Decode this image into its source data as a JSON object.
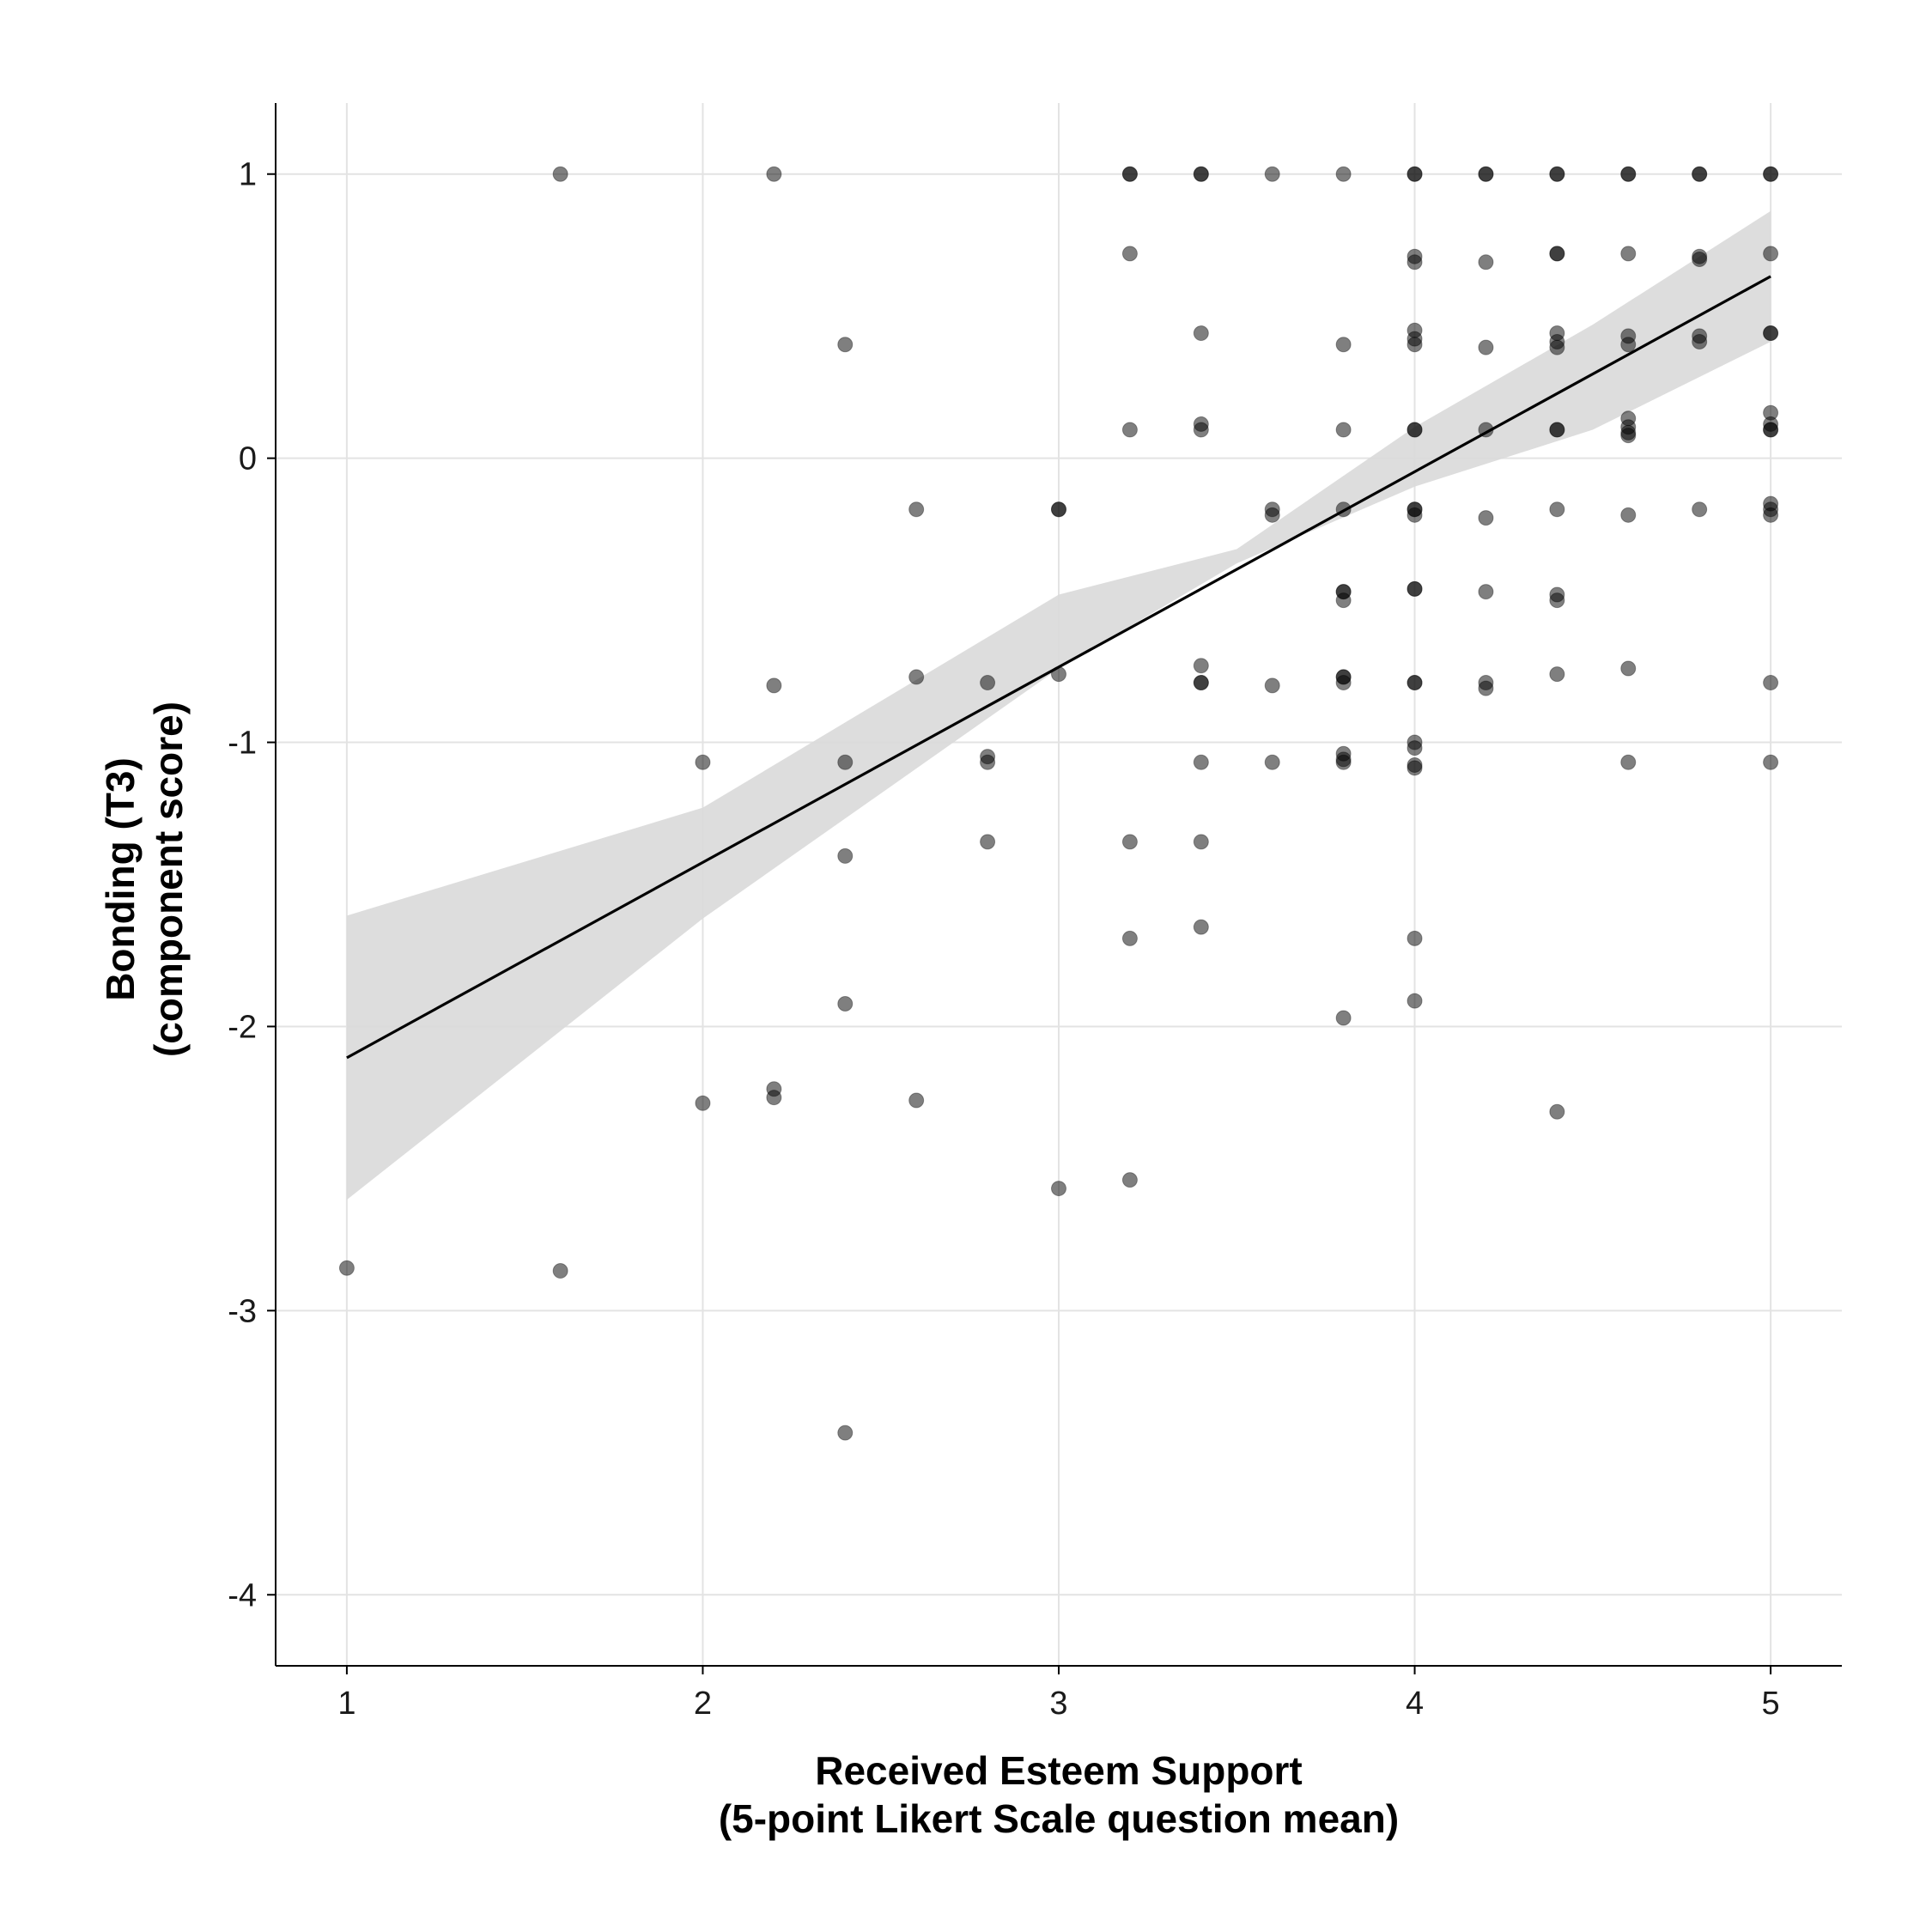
{
  "chart_data": {
    "type": "scatter",
    "title": "",
    "xlabel": [
      "Received Esteem Support",
      "(5-point Likert Scale question mean)"
    ],
    "ylabel": [
      "Bonding (T3)",
      "(component score)"
    ],
    "xlim": [
      0.8,
      5.2
    ],
    "ylim": [
      -4.25,
      1.25
    ],
    "x_ticks": [
      1,
      2,
      3,
      4,
      5
    ],
    "x_tick_labels": [
      "1",
      "2",
      "3",
      "4",
      "5"
    ],
    "y_ticks": [
      1,
      0,
      -1,
      -2,
      -3,
      -4
    ],
    "y_tick_labels": [
      "1",
      "0",
      "-1",
      "-2",
      "-3",
      "-4"
    ],
    "grid": true,
    "legend": "none",
    "point_color": "#000000",
    "point_opacity": 0.5,
    "ribbon_color": "#d9d9d9",
    "line_color": "#000000",
    "fit_line": {
      "x": [
        1,
        5
      ],
      "y": [
        -2.11,
        0.64
      ]
    },
    "confidence_band": {
      "x": [
        1,
        2,
        3,
        3.5,
        4,
        4.5,
        5
      ],
      "lower": [
        -2.61,
        -1.62,
        -0.74,
        -0.37,
        -0.1,
        0.1,
        0.41
      ],
      "upper": [
        -1.61,
        -1.23,
        -0.48,
        -0.32,
        0.11,
        0.47,
        0.87
      ]
    },
    "points": [
      [
        1.6,
        1.0
      ],
      [
        2.2,
        1.0
      ],
      [
        3.2,
        1.0
      ],
      [
        3.2,
        1.0
      ],
      [
        3.4,
        1.0
      ],
      [
        3.4,
        1.0
      ],
      [
        3.6,
        1.0
      ],
      [
        3.8,
        1.0
      ],
      [
        4.0,
        1.0
      ],
      [
        4.0,
        1.0
      ],
      [
        4.2,
        1.0
      ],
      [
        4.2,
        1.0
      ],
      [
        4.4,
        1.0
      ],
      [
        4.4,
        1.0
      ],
      [
        4.6,
        1.0
      ],
      [
        4.6,
        1.0
      ],
      [
        4.8,
        1.0
      ],
      [
        4.8,
        1.0
      ],
      [
        5.0,
        1.0
      ],
      [
        5.0,
        1.0
      ],
      [
        3.2,
        0.72
      ],
      [
        4.0,
        0.71
      ],
      [
        4.0,
        0.69
      ],
      [
        4.2,
        0.69
      ],
      [
        4.4,
        0.72
      ],
      [
        4.4,
        0.72
      ],
      [
        4.6,
        0.72
      ],
      [
        4.8,
        0.71
      ],
      [
        4.8,
        0.7
      ],
      [
        5.0,
        0.72
      ],
      [
        2.4,
        0.4
      ],
      [
        3.4,
        0.44
      ],
      [
        3.8,
        0.4
      ],
      [
        4.0,
        0.45
      ],
      [
        4.0,
        0.42
      ],
      [
        4.0,
        0.4
      ],
      [
        4.2,
        0.39
      ],
      [
        4.4,
        0.44
      ],
      [
        4.4,
        0.41
      ],
      [
        4.4,
        0.39
      ],
      [
        4.6,
        0.43
      ],
      [
        4.6,
        0.4
      ],
      [
        4.8,
        0.43
      ],
      [
        4.8,
        0.41
      ],
      [
        5.0,
        0.44
      ],
      [
        5.0,
        0.44
      ],
      [
        3.2,
        0.1
      ],
      [
        3.4,
        0.12
      ],
      [
        3.4,
        0.1
      ],
      [
        3.8,
        0.1
      ],
      [
        4.0,
        0.1
      ],
      [
        4.0,
        0.1
      ],
      [
        4.2,
        0.1
      ],
      [
        4.4,
        0.1
      ],
      [
        4.4,
        0.1
      ],
      [
        4.6,
        0.14
      ],
      [
        4.6,
        0.11
      ],
      [
        4.6,
        0.09
      ],
      [
        4.6,
        0.08
      ],
      [
        5.0,
        0.16
      ],
      [
        5.0,
        0.12
      ],
      [
        5.0,
        0.1
      ],
      [
        5.0,
        0.1
      ],
      [
        2.6,
        -0.18
      ],
      [
        3.0,
        -0.18
      ],
      [
        3.0,
        -0.18
      ],
      [
        3.6,
        -0.18
      ],
      [
        3.6,
        -0.2
      ],
      [
        3.8,
        -0.18
      ],
      [
        4.0,
        -0.18
      ],
      [
        4.0,
        -0.2
      ],
      [
        4.0,
        -0.18
      ],
      [
        4.2,
        -0.21
      ],
      [
        4.4,
        -0.18
      ],
      [
        4.6,
        -0.2
      ],
      [
        4.8,
        -0.18
      ],
      [
        5.0,
        -0.16
      ],
      [
        5.0,
        -0.2
      ],
      [
        5.0,
        -0.18
      ],
      [
        3.8,
        -0.47
      ],
      [
        3.8,
        -0.47
      ],
      [
        3.8,
        -0.5
      ],
      [
        4.0,
        -0.46
      ],
      [
        4.0,
        -0.46
      ],
      [
        4.2,
        -0.47
      ],
      [
        4.4,
        -0.48
      ],
      [
        4.4,
        -0.5
      ],
      [
        2.2,
        -0.8
      ],
      [
        2.6,
        -0.77
      ],
      [
        2.8,
        -0.79
      ],
      [
        3.0,
        -0.76
      ],
      [
        3.4,
        -0.73
      ],
      [
        3.4,
        -0.79
      ],
      [
        3.4,
        -0.79
      ],
      [
        3.6,
        -0.8
      ],
      [
        3.8,
        -0.77
      ],
      [
        3.8,
        -0.77
      ],
      [
        3.8,
        -0.79
      ],
      [
        4.0,
        -0.79
      ],
      [
        4.0,
        -0.79
      ],
      [
        4.2,
        -0.79
      ],
      [
        4.2,
        -0.81
      ],
      [
        4.4,
        -0.76
      ],
      [
        4.6,
        -0.74
      ],
      [
        5.0,
        -0.79
      ],
      [
        2.0,
        -1.07
      ],
      [
        2.4,
        -1.07
      ],
      [
        2.8,
        -1.05
      ],
      [
        2.8,
        -1.07
      ],
      [
        3.4,
        -1.07
      ],
      [
        3.6,
        -1.07
      ],
      [
        3.8,
        -1.04
      ],
      [
        3.8,
        -1.06
      ],
      [
        3.8,
        -1.07
      ],
      [
        4.0,
        -1.0
      ],
      [
        4.0,
        -1.02
      ],
      [
        4.0,
        -1.08
      ],
      [
        4.0,
        -1.09
      ],
      [
        4.6,
        -1.07
      ],
      [
        5.0,
        -1.07
      ],
      [
        2.4,
        -1.4
      ],
      [
        2.8,
        -1.35
      ],
      [
        3.2,
        -1.35
      ],
      [
        3.4,
        -1.35
      ],
      [
        3.2,
        -1.69
      ],
      [
        3.4,
        -1.65
      ],
      [
        4.0,
        -1.69
      ],
      [
        2.4,
        -1.92
      ],
      [
        3.8,
        -1.97
      ],
      [
        4.0,
        -1.91
      ],
      [
        2.0,
        -2.27
      ],
      [
        2.2,
        -2.22
      ],
      [
        2.2,
        -2.25
      ],
      [
        2.6,
        -2.26
      ],
      [
        4.4,
        -2.3
      ],
      [
        3.0,
        -2.57
      ],
      [
        3.2,
        -2.54
      ],
      [
        1.0,
        -2.85
      ],
      [
        1.6,
        -2.86
      ],
      [
        2.4,
        -3.43
      ]
    ]
  }
}
